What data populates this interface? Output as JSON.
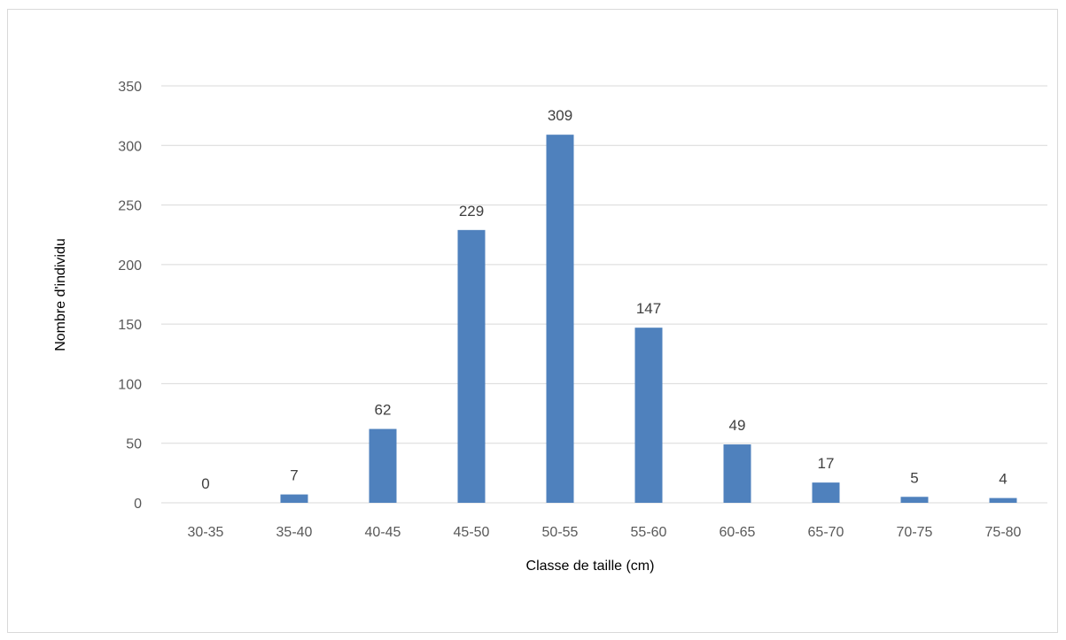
{
  "chart_data": {
    "type": "bar",
    "title": "",
    "xlabel": "Classe de taille (cm)",
    "ylabel": "Nombre d'individu",
    "categories": [
      "30-35",
      "35-40",
      "40-45",
      "45-50",
      "50-55",
      "55-60",
      "60-65",
      "65-70",
      "70-75",
      "75-80"
    ],
    "values": [
      0,
      7,
      62,
      229,
      309,
      147,
      49,
      17,
      5,
      4
    ],
    "data_labels": [
      "0",
      "7",
      "62",
      "229",
      "309",
      "147",
      "49",
      "17",
      "5",
      "4"
    ],
    "ylim": [
      0,
      350
    ],
    "yticks": [
      0,
      50,
      100,
      150,
      200,
      250,
      300,
      350
    ],
    "ytick_labels": [
      "0",
      "50",
      "100",
      "150",
      "200",
      "250",
      "300",
      "350"
    ],
    "grid": true,
    "legend": "none",
    "bar_color": "#4f81bd",
    "grid_color": "#d9d9d9"
  }
}
